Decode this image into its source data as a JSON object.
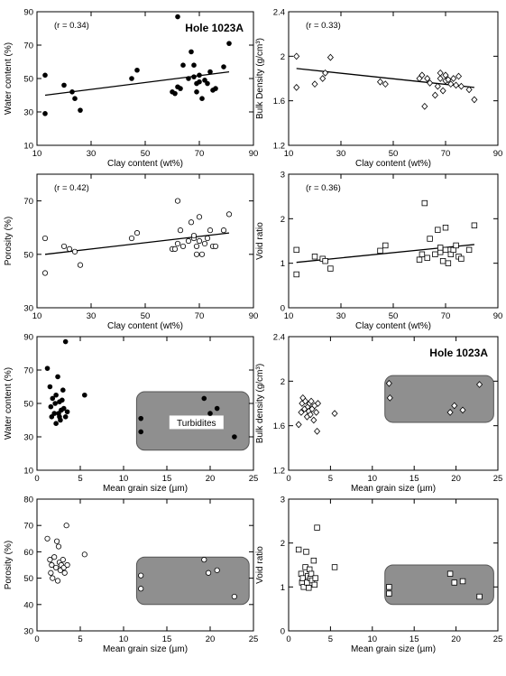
{
  "chart_data": [
    {
      "type": "scatter",
      "xlabel": "Clay content (wt%)",
      "ylabel": "Water content (%)",
      "xlim": [
        10,
        90
      ],
      "ylim": [
        10,
        90
      ],
      "xticks": [
        10,
        30,
        50,
        70,
        90
      ],
      "yticks": [
        10,
        30,
        50,
        70,
        90
      ],
      "marker": "filled-circle",
      "annotation": "(r = 0.34)",
      "title": "Hole 1023A",
      "trend": {
        "x": [
          13,
          81
        ],
        "y": [
          40,
          54
        ]
      },
      "points": [
        [
          13,
          52
        ],
        [
          13,
          29
        ],
        [
          20,
          46
        ],
        [
          23,
          42
        ],
        [
          24,
          38
        ],
        [
          26,
          31
        ],
        [
          45,
          50
        ],
        [
          47,
          55
        ],
        [
          60,
          42
        ],
        [
          61,
          41
        ],
        [
          62,
          45
        ],
        [
          63,
          44
        ],
        [
          62,
          87
        ],
        [
          64,
          58
        ],
        [
          66,
          50
        ],
        [
          67,
          66
        ],
        [
          68,
          51
        ],
        [
          68,
          58
        ],
        [
          69,
          47
        ],
        [
          69,
          42
        ],
        [
          70,
          48
        ],
        [
          70,
          52
        ],
        [
          71,
          38
        ],
        [
          72,
          49
        ],
        [
          73,
          47
        ],
        [
          74,
          54
        ],
        [
          75,
          43
        ],
        [
          76,
          44
        ],
        [
          79,
          57
        ],
        [
          81,
          71
        ]
      ]
    },
    {
      "type": "scatter",
      "xlabel": "Clay content (wt%)",
      "ylabel": "Bulk Density (g/cm³)",
      "xlim": [
        10,
        90
      ],
      "ylim": [
        1.2,
        2.4
      ],
      "xticks": [
        10,
        30,
        50,
        70,
        90
      ],
      "yticks": [
        1.2,
        1.6,
        2.0,
        2.4
      ],
      "marker": "open-diamond",
      "annotation": "(r = 0.33)",
      "trend": {
        "x": [
          13,
          81
        ],
        "y": [
          1.89,
          1.72
        ]
      },
      "points": [
        [
          13,
          2.0
        ],
        [
          13,
          1.72
        ],
        [
          20,
          1.75
        ],
        [
          23,
          1.8
        ],
        [
          24,
          1.85
        ],
        [
          26,
          1.99
        ],
        [
          45,
          1.77
        ],
        [
          47,
          1.75
        ],
        [
          60,
          1.8
        ],
        [
          61,
          1.83
        ],
        [
          62,
          1.55
        ],
        [
          63,
          1.8
        ],
        [
          64,
          1.76
        ],
        [
          66,
          1.65
        ],
        [
          67,
          1.73
        ],
        [
          68,
          1.8
        ],
        [
          68,
          1.85
        ],
        [
          69,
          1.69
        ],
        [
          70,
          1.78
        ],
        [
          70,
          1.83
        ],
        [
          71,
          1.79
        ],
        [
          72,
          1.75
        ],
        [
          73,
          1.8
        ],
        [
          74,
          1.74
        ],
        [
          75,
          1.82
        ],
        [
          76,
          1.73
        ],
        [
          79,
          1.7
        ],
        [
          81,
          1.61
        ]
      ]
    },
    {
      "type": "scatter",
      "xlabel": "Clay content (wt%)",
      "ylabel": "Porosity (%)",
      "xlim": [
        10,
        90
      ],
      "ylim": [
        30,
        80
      ],
      "xticks": [
        10,
        30,
        50,
        70,
        90
      ],
      "yticks": [
        30,
        50,
        70
      ],
      "marker": "open-circle",
      "annotation": "(r = 0.42)",
      "trend": {
        "x": [
          13,
          81
        ],
        "y": [
          50,
          58
        ]
      },
      "points": [
        [
          13,
          56
        ],
        [
          13,
          43
        ],
        [
          20,
          53
        ],
        [
          22,
          52
        ],
        [
          24,
          51
        ],
        [
          26,
          46
        ],
        [
          45,
          56
        ],
        [
          47,
          58
        ],
        [
          60,
          52
        ],
        [
          61,
          52
        ],
        [
          62,
          54
        ],
        [
          62,
          70
        ],
        [
          63,
          59
        ],
        [
          64,
          53
        ],
        [
          66,
          55
        ],
        [
          67,
          62
        ],
        [
          68,
          56
        ],
        [
          68,
          57
        ],
        [
          69,
          53
        ],
        [
          69,
          50
        ],
        [
          70,
          55
        ],
        [
          70,
          64
        ],
        [
          71,
          50
        ],
        [
          72,
          54
        ],
        [
          73,
          56
        ],
        [
          74,
          59
        ],
        [
          75,
          53
        ],
        [
          76,
          53
        ],
        [
          79,
          59
        ],
        [
          81,
          65
        ]
      ]
    },
    {
      "type": "scatter",
      "xlabel": "Clay content (wt%)",
      "ylabel": "Void ratio",
      "xlim": [
        10,
        90
      ],
      "ylim": [
        0,
        3
      ],
      "xticks": [
        10,
        30,
        50,
        70,
        90
      ],
      "yticks": [
        0,
        1,
        2,
        3
      ],
      "marker": "open-square",
      "annotation": "(r = 0.36)",
      "trend": {
        "x": [
          13,
          81
        ],
        "y": [
          1.02,
          1.42
        ]
      },
      "points": [
        [
          13,
          1.3
        ],
        [
          13,
          0.75
        ],
        [
          20,
          1.15
        ],
        [
          23,
          1.1
        ],
        [
          24,
          1.05
        ],
        [
          26,
          0.88
        ],
        [
          45,
          1.28
        ],
        [
          47,
          1.4
        ],
        [
          60,
          1.08
        ],
        [
          61,
          1.2
        ],
        [
          62,
          2.35
        ],
        [
          63,
          1.12
        ],
        [
          64,
          1.55
        ],
        [
          66,
          1.2
        ],
        [
          67,
          1.75
        ],
        [
          68,
          1.25
        ],
        [
          68,
          1.35
        ],
        [
          69,
          1.05
        ],
        [
          70,
          1.3
        ],
        [
          70,
          1.8
        ],
        [
          71,
          1.0
        ],
        [
          72,
          1.2
        ],
        [
          73,
          1.3
        ],
        [
          74,
          1.4
        ],
        [
          75,
          1.15
        ],
        [
          76,
          1.1
        ],
        [
          79,
          1.3
        ],
        [
          81,
          1.85
        ]
      ]
    },
    {
      "type": "scatter",
      "xlabel": "Mean grain size (µm)",
      "ylabel": "Water content (%)",
      "xlim": [
        0,
        25
      ],
      "ylim": [
        10,
        90
      ],
      "xticks": [
        0,
        5,
        10,
        15,
        20,
        25
      ],
      "yticks": [
        10,
        30,
        50,
        70,
        90
      ],
      "marker": "filled-circle",
      "region": {
        "x": [
          11.5,
          24.5
        ],
        "y": [
          22,
          57
        ],
        "label": "Turbidites"
      },
      "points": [
        [
          1.2,
          71
        ],
        [
          1.5,
          60
        ],
        [
          1.6,
          48
        ],
        [
          1.7,
          42
        ],
        [
          1.8,
          53
        ],
        [
          2.0,
          44
        ],
        [
          2.1,
          50
        ],
        [
          2.2,
          38
        ],
        [
          2.2,
          55
        ],
        [
          2.4,
          66
        ],
        [
          2.5,
          44
        ],
        [
          2.6,
          42
        ],
        [
          2.6,
          51
        ],
        [
          2.7,
          40
        ],
        [
          2.8,
          46
        ],
        [
          2.9,
          52
        ],
        [
          3.0,
          58
        ],
        [
          3.1,
          47
        ],
        [
          3.3,
          42
        ],
        [
          3.5,
          45
        ],
        [
          3.3,
          87
        ],
        [
          5.5,
          55
        ],
        [
          12.0,
          33
        ],
        [
          12.0,
          41
        ],
        [
          19.3,
          53
        ],
        [
          20.0,
          44
        ],
        [
          20.8,
          47
        ],
        [
          22.8,
          30
        ]
      ]
    },
    {
      "type": "scatter",
      "xlabel": "Mean grain size (µm)",
      "ylabel": "Bulk density (g/cm³)",
      "xlim": [
        0,
        25
      ],
      "ylim": [
        1.2,
        2.4
      ],
      "xticks": [
        0,
        5,
        10,
        15,
        20,
        25
      ],
      "yticks": [
        1.2,
        1.6,
        2.0,
        2.4
      ],
      "marker": "open-diamond",
      "title": "Hole 1023A",
      "region": {
        "x": [
          11.5,
          24.5
        ],
        "y": [
          1.63,
          2.05
        ]
      },
      "points": [
        [
          1.2,
          1.61
        ],
        [
          1.5,
          1.72
        ],
        [
          1.6,
          1.8
        ],
        [
          1.7,
          1.85
        ],
        [
          1.9,
          1.75
        ],
        [
          2.0,
          1.82
        ],
        [
          2.2,
          1.68
        ],
        [
          2.3,
          1.77
        ],
        [
          2.4,
          1.73
        ],
        [
          2.5,
          1.8
        ],
        [
          2.6,
          1.7
        ],
        [
          2.7,
          1.82
        ],
        [
          2.8,
          1.75
        ],
        [
          3.0,
          1.65
        ],
        [
          3.1,
          1.78
        ],
        [
          3.3,
          1.72
        ],
        [
          3.4,
          1.55
        ],
        [
          3.5,
          1.8
        ],
        [
          5.5,
          1.71
        ],
        [
          12.0,
          1.98
        ],
        [
          12.1,
          1.85
        ],
        [
          19.3,
          1.72
        ],
        [
          19.8,
          1.78
        ],
        [
          20.8,
          1.74
        ],
        [
          22.8,
          1.97
        ]
      ]
    },
    {
      "type": "scatter",
      "xlabel": "Mean grain size (µm)",
      "ylabel": "Porosity (%)",
      "xlim": [
        0,
        25
      ],
      "ylim": [
        30,
        80
      ],
      "xticks": [
        0,
        5,
        10,
        15,
        20,
        25
      ],
      "yticks": [
        30,
        40,
        50,
        60,
        70,
        80
      ],
      "marker": "open-circle",
      "region": {
        "x": [
          11.5,
          24.5
        ],
        "y": [
          40,
          58
        ]
      },
      "points": [
        [
          1.2,
          65
        ],
        [
          1.5,
          57
        ],
        [
          1.6,
          52
        ],
        [
          1.7,
          55
        ],
        [
          1.8,
          50
        ],
        [
          2.0,
          58
        ],
        [
          2.2,
          54
        ],
        [
          2.3,
          64
        ],
        [
          2.4,
          49
        ],
        [
          2.5,
          62
        ],
        [
          2.6,
          56
        ],
        [
          2.7,
          53
        ],
        [
          2.8,
          55
        ],
        [
          3.0,
          57
        ],
        [
          3.1,
          54
        ],
        [
          3.2,
          52
        ],
        [
          3.4,
          70
        ],
        [
          3.5,
          55
        ],
        [
          5.5,
          59
        ],
        [
          12.0,
          51
        ],
        [
          12.0,
          46
        ],
        [
          19.3,
          57
        ],
        [
          19.8,
          52
        ],
        [
          20.8,
          53
        ],
        [
          22.8,
          43
        ]
      ]
    },
    {
      "type": "scatter",
      "xlabel": "Mean grain size (µm)",
      "ylabel": "Void ratio",
      "xlim": [
        0,
        25
      ],
      "ylim": [
        0,
        3
      ],
      "xticks": [
        0,
        5,
        10,
        15,
        20,
        25
      ],
      "yticks": [
        0,
        1,
        2,
        3
      ],
      "marker": "open-square",
      "region": {
        "x": [
          11.5,
          24.5
        ],
        "y": [
          0.6,
          1.5
        ]
      },
      "points": [
        [
          1.2,
          1.85
        ],
        [
          1.5,
          1.3
        ],
        [
          1.6,
          1.1
        ],
        [
          1.7,
          1.2
        ],
        [
          1.8,
          1.0
        ],
        [
          2.0,
          1.45
        ],
        [
          2.1,
          1.8
        ],
        [
          2.2,
          1.1
        ],
        [
          2.3,
          1.25
        ],
        [
          2.4,
          0.98
        ],
        [
          2.5,
          1.4
        ],
        [
          2.6,
          1.2
        ],
        [
          2.7,
          1.3
        ],
        [
          2.8,
          1.15
        ],
        [
          3.0,
          1.6
        ],
        [
          3.1,
          1.05
        ],
        [
          3.2,
          1.2
        ],
        [
          3.4,
          2.35
        ],
        [
          5.5,
          1.45
        ],
        [
          12.0,
          1.0
        ],
        [
          12.0,
          0.85
        ],
        [
          19.3,
          1.3
        ],
        [
          19.8,
          1.1
        ],
        [
          20.8,
          1.13
        ],
        [
          22.8,
          0.78
        ]
      ]
    }
  ]
}
